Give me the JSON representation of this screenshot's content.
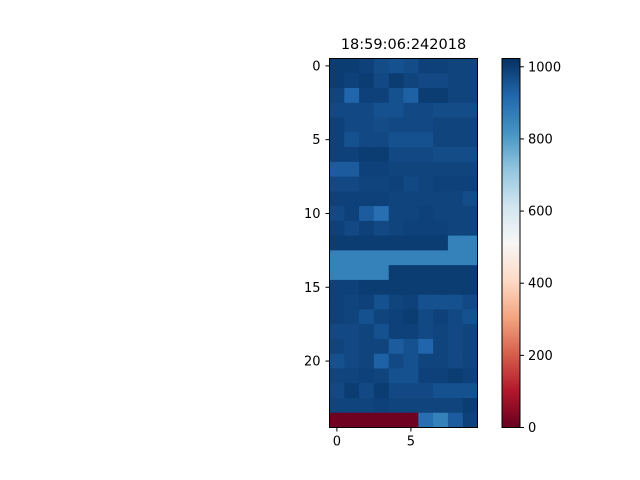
{
  "chart_data": {
    "type": "heatmap",
    "title": "18:59:06:242018",
    "xlabel": "",
    "ylabel": "",
    "colormap": "RdBu",
    "vmin": 0,
    "vmax": 1023,
    "x_ticks": [
      0,
      5
    ],
    "y_ticks": [
      0,
      5,
      10,
      15,
      20
    ],
    "colorbar_ticks": [
      0,
      200,
      400,
      600,
      800,
      1000
    ],
    "grid": false,
    "rows": 25,
    "cols": 10,
    "values": [
      [
        1000,
        1000,
        990,
        970,
        960,
        970,
        990,
        990,
        985,
        985
      ],
      [
        1000,
        990,
        1000,
        975,
        1000,
        985,
        975,
        975,
        985,
        985
      ],
      [
        985,
        920,
        990,
        990,
        960,
        930,
        1000,
        1000,
        985,
        985
      ],
      [
        975,
        975,
        975,
        960,
        960,
        975,
        975,
        970,
        970,
        970
      ],
      [
        990,
        975,
        975,
        970,
        975,
        975,
        975,
        985,
        985,
        985
      ],
      [
        990,
        960,
        975,
        975,
        960,
        960,
        960,
        985,
        985,
        985
      ],
      [
        990,
        990,
        1000,
        1000,
        975,
        975,
        975,
        970,
        970,
        970
      ],
      [
        940,
        940,
        990,
        990,
        985,
        985,
        985,
        985,
        985,
        985
      ],
      [
        975,
        975,
        985,
        985,
        990,
        975,
        985,
        990,
        990,
        990
      ],
      [
        990,
        990,
        990,
        990,
        985,
        985,
        985,
        985,
        985,
        970
      ],
      [
        975,
        990,
        940,
        900,
        985,
        985,
        990,
        985,
        985,
        985
      ],
      [
        990,
        975,
        990,
        975,
        985,
        990,
        990,
        990,
        985,
        985
      ],
      [
        1000,
        1000,
        1000,
        1000,
        1000,
        1000,
        1000,
        1000,
        860,
        860
      ],
      [
        860,
        860,
        860,
        860,
        860,
        860,
        860,
        860,
        860,
        860
      ],
      [
        860,
        860,
        860,
        860,
        1000,
        1000,
        1000,
        1000,
        1000,
        1000
      ],
      [
        990,
        990,
        1000,
        1000,
        1000,
        1000,
        1000,
        1000,
        1000,
        1000
      ],
      [
        990,
        985,
        990,
        960,
        985,
        990,
        960,
        960,
        960,
        975
      ],
      [
        990,
        985,
        960,
        985,
        990,
        1000,
        975,
        990,
        975,
        960
      ],
      [
        975,
        975,
        985,
        960,
        990,
        990,
        975,
        985,
        975,
        985
      ],
      [
        985,
        975,
        985,
        985,
        940,
        960,
        920,
        985,
        975,
        985
      ],
      [
        960,
        975,
        985,
        930,
        975,
        960,
        985,
        985,
        975,
        985
      ],
      [
        985,
        985,
        990,
        985,
        960,
        960,
        990,
        990,
        1000,
        990
      ],
      [
        975,
        1000,
        975,
        1000,
        975,
        975,
        975,
        960,
        960,
        960
      ],
      [
        985,
        985,
        985,
        990,
        985,
        985,
        985,
        985,
        985,
        1000
      ],
      [
        10,
        10,
        10,
        10,
        10,
        10,
        900,
        860,
        940,
        990
      ]
    ]
  }
}
